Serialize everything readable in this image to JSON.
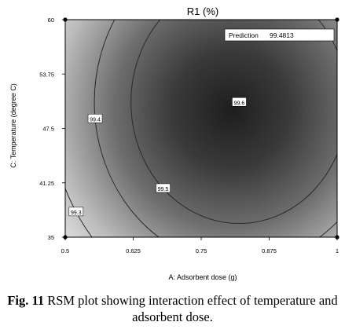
{
  "chart_data": {
    "type": "contour",
    "title": "R1 (%)",
    "xlabel": "A: Adsorbent dose (g)",
    "ylabel": "C: Temperature (degree C)",
    "xlim": [
      0.5,
      1.0
    ],
    "ylim": [
      35,
      60
    ],
    "x_ticks": [
      "0.5",
      "0.625",
      "0.75",
      "0.875",
      "1"
    ],
    "y_ticks": [
      "35",
      "41.25",
      "47.5",
      "53.75",
      "60"
    ],
    "x_tick_values": [
      0.5,
      0.625,
      0.75,
      0.875,
      1.0
    ],
    "y_tick_values": [
      35,
      41.25,
      47.5,
      53.75,
      60
    ],
    "optimum": {
      "x": 0.82,
      "y": 50.5
    },
    "contour_levels": [
      {
        "label": "99.6",
        "value": 99.6,
        "label_at": {
          "x": 0.82,
          "y": 50.5
        }
      },
      {
        "label": "99.5",
        "value": 99.5,
        "label_at": {
          "x": 0.68,
          "y": 40.6
        }
      },
      {
        "label": "99.4",
        "value": 99.4,
        "label_at": {
          "x": 0.555,
          "y": 48.6
        }
      },
      {
        "label": "99.3",
        "value": 99.3,
        "label_at": {
          "x": 0.52,
          "y": 37.9
        }
      }
    ],
    "corner_points": [
      {
        "x": 0.5,
        "y": 60
      },
      {
        "x": 1.0,
        "y": 60
      },
      {
        "x": 0.5,
        "y": 35
      },
      {
        "x": 1.0,
        "y": 35
      }
    ],
    "prediction": {
      "label": "Prediction",
      "value": "99.4813"
    },
    "grid": false,
    "colors": {
      "surface_dark": "#1e1e1e",
      "surface_light": "#f4f4f4",
      "contour": "#2a2a2a"
    }
  },
  "caption": {
    "label": "Fig. 11",
    "text": " RSM plot showing interaction effect of temperature and adsorbent dose."
  }
}
